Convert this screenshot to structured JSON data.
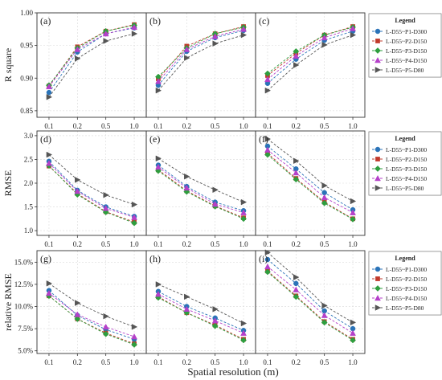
{
  "figure": {
    "xlabel": "Spatial resolution (m)",
    "x_ticks": [
      "0.1",
      "0.2",
      "0.5",
      "1.0"
    ],
    "legend_title": "Legend"
  },
  "series_styles": [
    {
      "name": "L-D55~P1-D300",
      "color": "#2a73b8",
      "marker": "circle"
    },
    {
      "name": "L-D55~P2-D150",
      "color": "#c0392b",
      "marker": "square"
    },
    {
      "name": "L-D55~P3-D150",
      "color": "#2e9e3e",
      "marker": "diamond"
    },
    {
      "name": "L-D55~P4-D150",
      "color": "#b540c9",
      "marker": "triangle"
    },
    {
      "name": "L-D55~P5-D80",
      "color": "#555555",
      "marker": "triangle-right"
    }
  ],
  "chart_data": [
    {
      "type": "line",
      "panel_label": "(a)",
      "row": 0,
      "col": 0,
      "ylabel": "R square",
      "ylim": [
        0.84,
        1.0
      ],
      "y_ticks": [
        "0.85",
        "0.90",
        "0.95",
        "1.00"
      ],
      "categories": [
        "0.1",
        "0.2",
        "0.5",
        "1.0"
      ],
      "show_legend": true,
      "series": [
        {
          "name": "L-D55~P1-D300",
          "values": [
            0.878,
            0.94,
            0.968,
            0.977
          ]
        },
        {
          "name": "L-D55~P2-D150",
          "values": [
            0.888,
            0.948,
            0.972,
            0.982
          ]
        },
        {
          "name": "L-D55~P3-D150",
          "values": [
            0.889,
            0.946,
            0.972,
            0.981
          ]
        },
        {
          "name": "L-D55~P4-D150",
          "values": [
            0.887,
            0.944,
            0.968,
            0.978
          ]
        },
        {
          "name": "L-D55~P5-D80",
          "values": [
            0.871,
            0.93,
            0.957,
            0.968
          ]
        }
      ]
    },
    {
      "type": "line",
      "panel_label": "(b)",
      "row": 0,
      "col": 1,
      "ylim": [
        0.84,
        1.0
      ],
      "y_ticks": [
        "0.85",
        "0.90",
        "0.95",
        "1.00"
      ],
      "categories": [
        "0.1",
        "0.2",
        "0.5",
        "1.0"
      ],
      "series": [
        {
          "name": "L-D55~P1-D300",
          "values": [
            0.889,
            0.941,
            0.962,
            0.973
          ]
        },
        {
          "name": "L-D55~P2-D150",
          "values": [
            0.899,
            0.949,
            0.968,
            0.979
          ]
        },
        {
          "name": "L-D55~P3-D150",
          "values": [
            0.902,
            0.946,
            0.968,
            0.978
          ]
        },
        {
          "name": "L-D55~P4-D150",
          "values": [
            0.895,
            0.944,
            0.964,
            0.975
          ]
        },
        {
          "name": "L-D55~P5-D80",
          "values": [
            0.881,
            0.931,
            0.953,
            0.966
          ]
        }
      ]
    },
    {
      "type": "line",
      "panel_label": "(c)",
      "row": 0,
      "col": 2,
      "ylim": [
        0.84,
        1.0
      ],
      "y_ticks": [
        "0.85",
        "0.90",
        "0.95",
        "1.00"
      ],
      "categories": [
        "0.1",
        "0.2",
        "0.5",
        "1.0"
      ],
      "show_legend": true,
      "series": [
        {
          "name": "L-D55~P1-D300",
          "values": [
            0.892,
            0.929,
            0.958,
            0.972
          ]
        },
        {
          "name": "L-D55~P2-D150",
          "values": [
            0.904,
            0.938,
            0.966,
            0.979
          ]
        },
        {
          "name": "L-D55~P3-D150",
          "values": [
            0.907,
            0.941,
            0.966,
            0.978
          ]
        },
        {
          "name": "L-D55~P4-D150",
          "values": [
            0.898,
            0.934,
            0.962,
            0.976
          ]
        },
        {
          "name": "L-D55~P5-D80",
          "values": [
            0.881,
            0.92,
            0.951,
            0.966
          ]
        }
      ]
    },
    {
      "type": "line",
      "panel_label": "(d)",
      "row": 1,
      "col": 0,
      "ylabel": "RMSE",
      "ylim": [
        0.9,
        3.1
      ],
      "y_ticks": [
        "1.0",
        "1.5",
        "2.0",
        "2.5",
        "3.0"
      ],
      "categories": [
        "0.1",
        "0.2",
        "0.5",
        "1.0"
      ],
      "show_legend": true,
      "series": [
        {
          "name": "L-D55~P1-D300",
          "values": [
            2.46,
            1.85,
            1.5,
            1.3
          ]
        },
        {
          "name": "L-D55~P2-D150",
          "values": [
            2.36,
            1.78,
            1.4,
            1.18
          ]
        },
        {
          "name": "L-D55~P3-D150",
          "values": [
            2.37,
            1.76,
            1.39,
            1.16
          ]
        },
        {
          "name": "L-D55~P4-D150",
          "values": [
            2.42,
            1.83,
            1.47,
            1.28
          ]
        },
        {
          "name": "L-D55~P5-D80",
          "values": [
            2.6,
            2.07,
            1.75,
            1.55
          ]
        }
      ]
    },
    {
      "type": "line",
      "panel_label": "(e)",
      "row": 1,
      "col": 1,
      "ylim": [
        0.9,
        3.1
      ],
      "y_ticks": [
        "1.0",
        "1.5",
        "2.0",
        "2.5",
        "3.0"
      ],
      "categories": [
        "0.1",
        "0.2",
        "0.5",
        "1.0"
      ],
      "series": [
        {
          "name": "L-D55~P1-D300",
          "values": [
            2.38,
            1.93,
            1.6,
            1.42
          ]
        },
        {
          "name": "L-D55~P2-D150",
          "values": [
            2.28,
            1.84,
            1.52,
            1.27
          ]
        },
        {
          "name": "L-D55~P3-D150",
          "values": [
            2.26,
            1.82,
            1.51,
            1.25
          ]
        },
        {
          "name": "L-D55~P4-D150",
          "values": [
            2.34,
            1.9,
            1.56,
            1.38
          ]
        },
        {
          "name": "L-D55~P5-D80",
          "values": [
            2.52,
            2.14,
            1.86,
            1.6
          ]
        }
      ]
    },
    {
      "type": "line",
      "panel_label": "(f)",
      "row": 1,
      "col": 2,
      "ylim": [
        0.9,
        3.1
      ],
      "y_ticks": [
        "1.0",
        "1.5",
        "2.0",
        "2.5",
        "3.0"
      ],
      "categories": [
        "0.1",
        "0.2",
        "0.5",
        "1.0"
      ],
      "show_legend": true,
      "series": [
        {
          "name": "L-D55~P1-D300",
          "values": [
            2.78,
            2.3,
            1.8,
            1.44
          ]
        },
        {
          "name": "L-D55~P2-D150",
          "values": [
            2.63,
            2.1,
            1.6,
            1.25
          ]
        },
        {
          "name": "L-D55~P3-D150",
          "values": [
            2.6,
            2.08,
            1.58,
            1.24
          ]
        },
        {
          "name": "L-D55~P4-D150",
          "values": [
            2.7,
            2.22,
            1.7,
            1.38
          ]
        },
        {
          "name": "L-D55~P5-D80",
          "values": [
            2.93,
            2.47,
            1.95,
            1.62
          ]
        }
      ]
    },
    {
      "type": "line",
      "panel_label": "(g)",
      "row": 2,
      "col": 0,
      "ylabel": "relative RMSE",
      "ylim": [
        0.047,
        0.163
      ],
      "y_ticks": [
        "5.0%",
        "7.5%",
        "10.0%",
        "12.5%",
        "15.0%"
      ],
      "categories": [
        "0.1",
        "0.2",
        "0.5",
        "1.0"
      ],
      "show_legend": true,
      "series": [
        {
          "name": "L-D55~P1-D300",
          "values": [
            0.118,
            0.09,
            0.074,
            0.063
          ]
        },
        {
          "name": "L-D55~P2-D150",
          "values": [
            0.112,
            0.086,
            0.07,
            0.058
          ]
        },
        {
          "name": "L-D55~P3-D150",
          "values": [
            0.112,
            0.086,
            0.069,
            0.057
          ]
        },
        {
          "name": "L-D55~P4-D150",
          "values": [
            0.115,
            0.091,
            0.077,
            0.066
          ]
        },
        {
          "name": "L-D55~P5-D80",
          "values": [
            0.126,
            0.104,
            0.089,
            0.077
          ]
        }
      ]
    },
    {
      "type": "line",
      "panel_label": "(h)",
      "row": 2,
      "col": 1,
      "ylim": [
        0.047,
        0.163
      ],
      "y_ticks": [
        "5.0%",
        "7.5%",
        "10.0%",
        "12.5%",
        "15.0%"
      ],
      "categories": [
        "0.1",
        "0.2",
        "0.5",
        "1.0"
      ],
      "series": [
        {
          "name": "L-D55~P1-D300",
          "values": [
            0.117,
            0.1,
            0.087,
            0.073
          ]
        },
        {
          "name": "L-D55~P2-D150",
          "values": [
            0.111,
            0.093,
            0.079,
            0.063
          ]
        },
        {
          "name": "L-D55~P3-D150",
          "values": [
            0.11,
            0.093,
            0.078,
            0.062
          ]
        },
        {
          "name": "L-D55~P4-D150",
          "values": [
            0.114,
            0.097,
            0.084,
            0.07
          ]
        },
        {
          "name": "L-D55~P5-D80",
          "values": [
            0.125,
            0.111,
            0.097,
            0.081
          ]
        }
      ]
    },
    {
      "type": "line",
      "panel_label": "(i)",
      "row": 2,
      "col": 2,
      "ylim": [
        0.047,
        0.163
      ],
      "y_ticks": [
        "5.0%",
        "7.5%",
        "10.0%",
        "12.5%",
        "15.0%"
      ],
      "categories": [
        "0.1",
        "0.2",
        "0.5",
        "1.0"
      ],
      "show_legend": true,
      "series": [
        {
          "name": "L-D55~P1-D300",
          "values": [
            0.153,
            0.126,
            0.095,
            0.075
          ]
        },
        {
          "name": "L-D55~P2-D150",
          "values": [
            0.14,
            0.112,
            0.083,
            0.063
          ]
        },
        {
          "name": "L-D55~P3-D150",
          "values": [
            0.139,
            0.111,
            0.082,
            0.062
          ]
        },
        {
          "name": "L-D55~P4-D150",
          "values": [
            0.145,
            0.119,
            0.09,
            0.07
          ]
        },
        {
          "name": "L-D55~P5-D80",
          "values": [
            0.161,
            0.133,
            0.101,
            0.082
          ]
        }
      ]
    }
  ]
}
